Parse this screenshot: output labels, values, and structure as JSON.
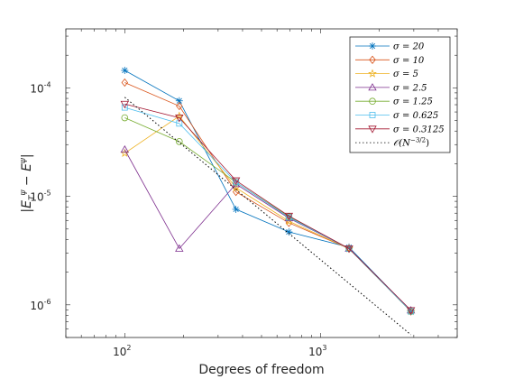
{
  "chart_data": {
    "type": "line",
    "title": "",
    "xlabel": "Degrees of freedom",
    "ylabel": "|E_T^{ψ} - E^{ψ}|",
    "ylabel_parts": {
      "base": "|E",
      "sub": "T",
      "sup": "ψ",
      "mid": " − E",
      "sup2": "ψ",
      "end": "|"
    },
    "xscale": "log",
    "yscale": "log",
    "xlim": [
      50,
      5000
    ],
    "ylim": [
      5e-07,
      0.00035
    ],
    "grid": false,
    "legend": "top-right",
    "x_ticks": [
      {
        "value": 100,
        "base": "10",
        "exp": "2"
      },
      {
        "value": 1000,
        "base": "10",
        "exp": "3"
      }
    ],
    "y_ticks": [
      {
        "value": 1e-06,
        "base": "10",
        "exp": "-6"
      },
      {
        "value": 1e-05,
        "base": "10",
        "exp": "-5"
      },
      {
        "value": 0.0001,
        "base": "10",
        "exp": "-4"
      }
    ],
    "x": [
      100,
      190,
      370,
      690,
      1400,
      2900
    ],
    "series": [
      {
        "name": "σ = 20",
        "color": "#0072BD",
        "marker": "asterisk",
        "values": [
          0.000145,
          7.6e-05,
          7.6e-06,
          4.7e-06,
          3.4e-06,
          8.8e-07
        ]
      },
      {
        "name": "σ = 10",
        "color": "#D95319",
        "marker": "diamond",
        "values": [
          0.000112,
          6.8e-05,
          1.1e-05,
          5.7e-06,
          3.3e-06,
          8.7e-07
        ]
      },
      {
        "name": "σ = 5",
        "color": "#EDB120",
        "marker": "star",
        "values": [
          2.5e-05,
          5.5e-05,
          1.2e-05,
          5.9e-06,
          3.3e-06,
          8.7e-07
        ]
      },
      {
        "name": "σ = 2.5",
        "color": "#7E2F8E",
        "marker": "triangle",
        "values": [
          2.7e-05,
          3.3e-06,
          1.3e-05,
          6.3e-06,
          3.3e-06,
          8.9e-07
        ]
      },
      {
        "name": "σ = 1.25",
        "color": "#77AC30",
        "marker": "circle",
        "values": [
          5.3e-05,
          3.2e-05,
          1.35e-05,
          6.5e-06,
          3.3e-06,
          8.7e-07
        ]
      },
      {
        "name": "σ = 0.625",
        "color": "#4DBEEE",
        "marker": "square",
        "values": [
          6.6e-05,
          4.7e-05,
          1.35e-05,
          6.4e-06,
          3.3e-06,
          8.7e-07
        ]
      },
      {
        "name": "σ = 0.3125",
        "color": "#A2142F",
        "marker": "triangle-down",
        "values": [
          7.1e-05,
          5.3e-05,
          1.4e-05,
          6.6e-06,
          3.3e-06,
          8.9e-07
        ]
      },
      {
        "name": "O(N^{-3/2})",
        "name_parts": {
          "pre": "𝒪(N",
          "sup": "−3/2",
          "post": ")"
        },
        "color": "#000000",
        "marker": "none",
        "dash": "1.5,2.5",
        "x": [
          100,
          2900
        ],
        "values": [
          8.2e-05,
          5.3e-07
        ]
      }
    ]
  }
}
